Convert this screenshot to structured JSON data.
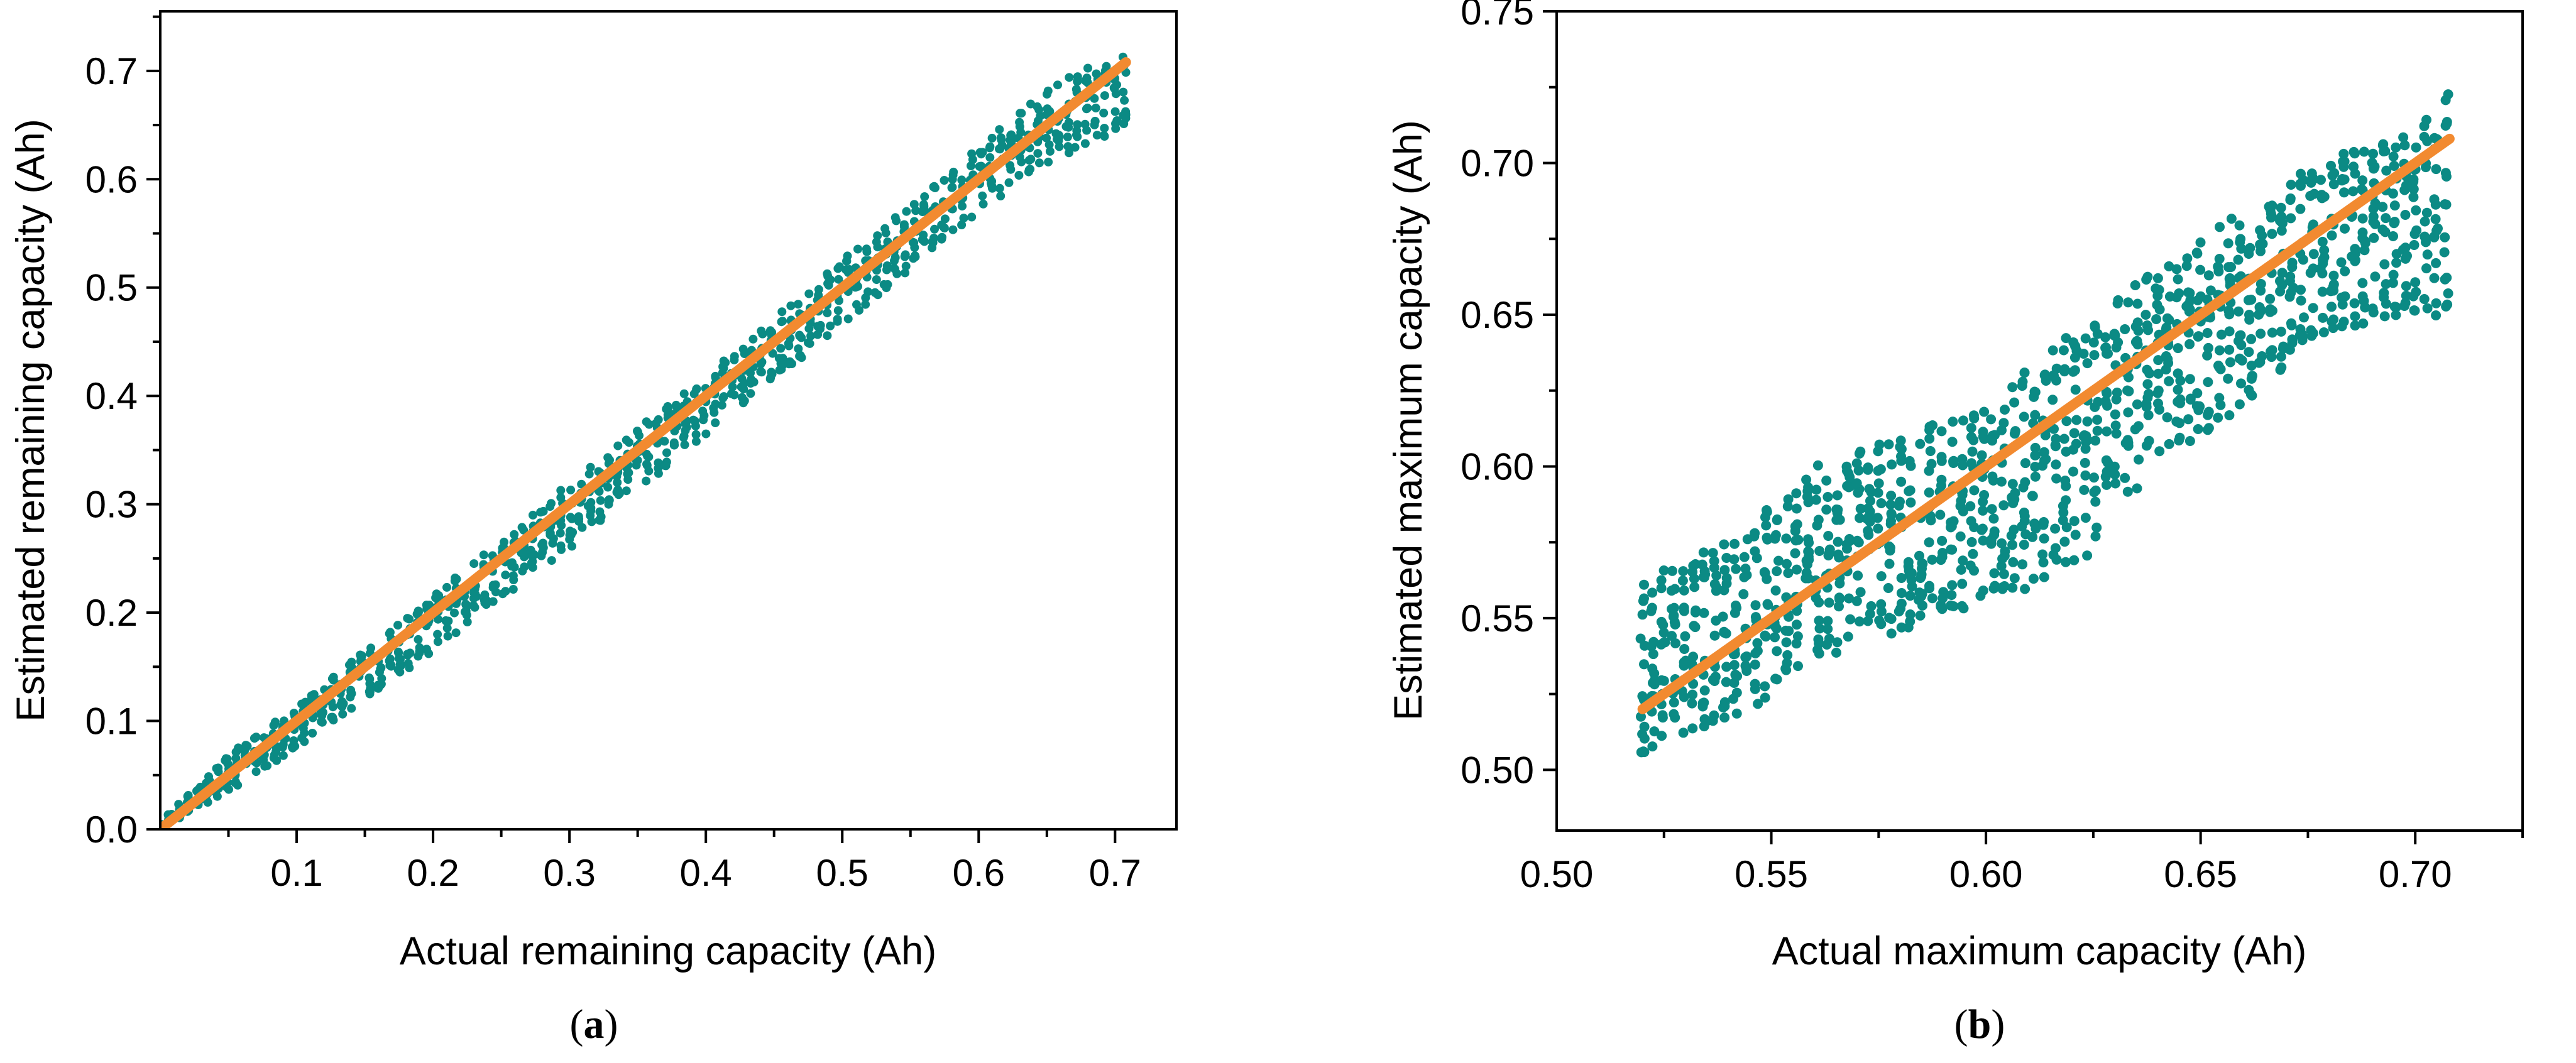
{
  "colors": {
    "points": "#0b8a84",
    "fit_line": "#f28a30",
    "axes": "#000000"
  },
  "chart_data": [
    {
      "id": "a",
      "type": "scatter",
      "caption": "a",
      "xlabel": "Actual remaining capacity (Ah)",
      "ylabel": "Estimated remaining capacity (Ah)",
      "xlim": [
        0.0,
        0.745
      ],
      "ylim": [
        0.0,
        0.755
      ],
      "x_ticks": [
        0.1,
        0.2,
        0.3,
        0.4,
        0.5,
        0.6,
        0.7
      ],
      "x_tick_labels": [
        "0.1",
        "0.2",
        "0.3",
        "0.4",
        "0.5",
        "0.6",
        "0.7"
      ],
      "y_ticks": [
        0.0,
        0.1,
        0.2,
        0.3,
        0.4,
        0.5,
        0.6,
        0.7
      ],
      "y_tick_labels": [
        "0.0",
        "0.1",
        "0.2",
        "0.3",
        "0.4",
        "0.5",
        "0.6",
        "0.7"
      ],
      "series": [
        {
          "name": "Estimated",
          "kind": "scatter",
          "band": {
            "x": [
              0.0,
              0.05,
              0.1,
              0.2,
              0.3,
              0.4,
              0.5,
              0.6,
              0.65,
              0.708
            ],
            "y_low": [
              0.0,
              0.035,
              0.075,
              0.165,
              0.26,
              0.365,
              0.465,
              0.57,
              0.615,
              0.645
            ],
            "y_high": [
              0.005,
              0.07,
              0.115,
              0.215,
              0.32,
              0.42,
              0.525,
              0.63,
              0.685,
              0.725
            ]
          }
        },
        {
          "name": "Fit",
          "kind": "line",
          "x": [
            0.0,
            0.708
          ],
          "y": [
            0.0,
            0.708
          ]
        }
      ]
    },
    {
      "id": "b",
      "type": "scatter",
      "caption": "b",
      "xlabel": "Actual maximum capacity (Ah)",
      "ylabel": "Estimated maximum capacity (Ah)",
      "xlim": [
        0.5,
        0.725
      ],
      "ylim": [
        0.48,
        0.75
      ],
      "x_ticks": [
        0.5,
        0.55,
        0.6,
        0.65,
        0.7
      ],
      "x_tick_labels": [
        "0.50",
        "0.55",
        "0.60",
        "0.65",
        "0.70"
      ],
      "y_ticks": [
        0.5,
        0.55,
        0.6,
        0.65,
        0.7,
        0.75
      ],
      "y_tick_labels": [
        "0.50",
        "0.55",
        "0.60",
        "0.65",
        "0.70",
        "0.75"
      ],
      "series": [
        {
          "name": "Estimated",
          "kind": "scatter",
          "band": {
            "x": [
              0.52,
              0.54,
              0.56,
              0.58,
              0.6,
              0.62,
              0.64,
              0.66,
              0.68,
              0.7,
              0.708
            ],
            "y_low": [
              0.505,
              0.515,
              0.535,
              0.545,
              0.555,
              0.565,
              0.6,
              0.62,
              0.645,
              0.65,
              0.648
            ],
            "y_high": [
              0.565,
              0.575,
              0.6,
              0.61,
              0.62,
              0.645,
              0.665,
              0.685,
              0.702,
              0.712,
              0.725
            ]
          }
        },
        {
          "name": "Fit",
          "kind": "line",
          "x": [
            0.52,
            0.708
          ],
          "y": [
            0.52,
            0.708
          ]
        }
      ]
    }
  ]
}
